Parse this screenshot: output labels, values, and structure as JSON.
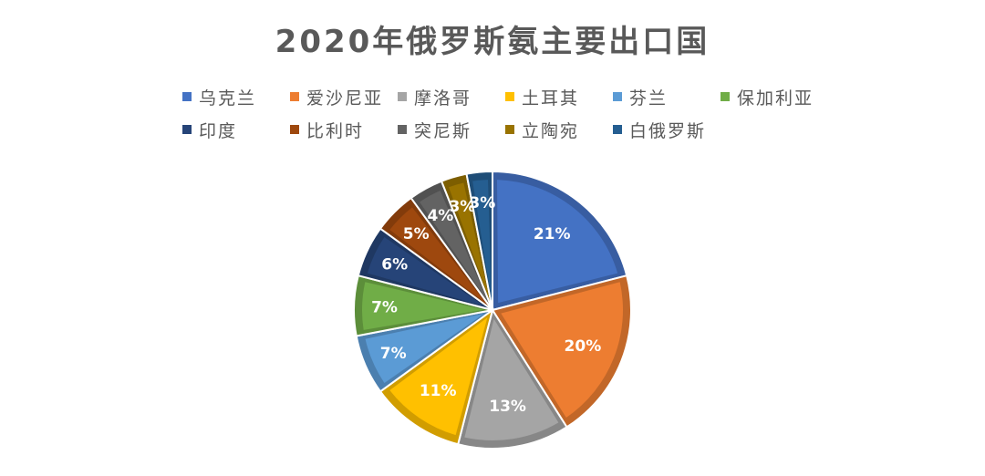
{
  "chart_data": {
    "type": "pie",
    "title": "2020年俄罗斯氨主要出口国",
    "legend_position": "top",
    "categories": [
      "乌克兰",
      "爱沙尼亚",
      "摩洛哥",
      "土耳其",
      "芬兰",
      "保加利亚",
      "印度",
      "比利时",
      "突尼斯",
      "立陶宛",
      "白俄罗斯"
    ],
    "values": [
      21,
      20,
      13,
      11,
      7,
      7,
      6,
      5,
      4,
      3,
      3
    ],
    "labels": [
      "21%",
      "20%",
      "13%",
      "11%",
      "7%",
      "7%",
      "6%",
      "5%",
      "4%",
      "3%",
      "3%"
    ],
    "colors": [
      "#4472C4",
      "#ED7D31",
      "#A5A5A5",
      "#FFC000",
      "#5B9BD5",
      "#70AD47",
      "#264478",
      "#9E480E",
      "#636363",
      "#997300",
      "#255E91"
    ]
  }
}
